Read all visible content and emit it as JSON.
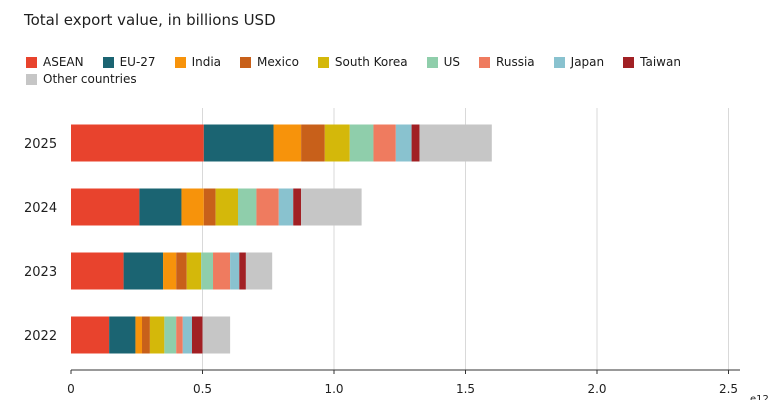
{
  "chart_data": {
    "type": "bar",
    "orientation": "horizontal",
    "stacked": true,
    "title": "Total export value, in billions USD",
    "xlabel": "",
    "ylabel": "",
    "x_axis_suffix": "e12",
    "xlim": [
      0,
      2.55
    ],
    "xticks": [
      0,
      0.5,
      1.0,
      1.5,
      2.0,
      2.5
    ],
    "xtick_labels": [
      "0",
      "0.5",
      "1.0",
      "1.5",
      "2.0",
      "2.5"
    ],
    "grid": "vertical",
    "legend_position": "top",
    "categories": [
      "2025",
      "2024",
      "2023",
      "2022"
    ],
    "series": [
      {
        "name": "ASEAN",
        "color": "#e8432d",
        "values": [
          0.505,
          0.26,
          0.2,
          0.145
        ]
      },
      {
        "name": "EU-27",
        "color": "#1b6472",
        "values": [
          0.265,
          0.16,
          0.15,
          0.1
        ]
      },
      {
        "name": "India",
        "color": "#f7930b",
        "values": [
          0.105,
          0.085,
          0.05,
          0.025
        ]
      },
      {
        "name": "Mexico",
        "color": "#c8601a",
        "values": [
          0.09,
          0.045,
          0.04,
          0.03
        ]
      },
      {
        "name": "South Korea",
        "color": "#d4b80a",
        "values": [
          0.095,
          0.085,
          0.055,
          0.055
        ]
      },
      {
        "name": "US",
        "color": "#8fceab",
        "values": [
          0.09,
          0.07,
          0.045,
          0.045
        ]
      },
      {
        "name": "Russia",
        "color": "#ef7b5f",
        "values": [
          0.085,
          0.085,
          0.065,
          0.025
        ]
      },
      {
        "name": "Japan",
        "color": "#89c2cf",
        "values": [
          0.06,
          0.055,
          0.035,
          0.035
        ]
      },
      {
        "name": "Taiwan",
        "color": "#a12024",
        "values": [
          0.03,
          0.03,
          0.025,
          0.04
        ]
      },
      {
        "name": "Other countries",
        "color": "#c6c6c6",
        "values": [
          0.275,
          0.23,
          0.1,
          0.105
        ]
      }
    ]
  }
}
